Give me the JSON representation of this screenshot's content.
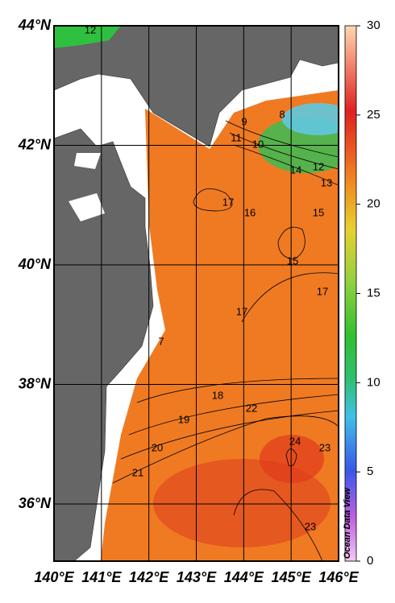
{
  "map": {
    "lat_labels": [
      "44°N",
      "42°N",
      "40°N",
      "38°N",
      "36°N"
    ],
    "lon_labels": [
      "140°E",
      "141°E",
      "142°E",
      "143°E",
      "144°E",
      "145°E",
      "146°E"
    ],
    "colorbar": {
      "range": [
        0,
        30
      ],
      "ticks": [
        0,
        5,
        10,
        15,
        20,
        25,
        30
      ]
    },
    "contour_labels": [
      12,
      8,
      9,
      11,
      10,
      14,
      12,
      13,
      17,
      16,
      15,
      15,
      17,
      17,
      7,
      18,
      19,
      22,
      20,
      24,
      23,
      21,
      23
    ],
    "watermark": "Ocean Data View"
  }
}
